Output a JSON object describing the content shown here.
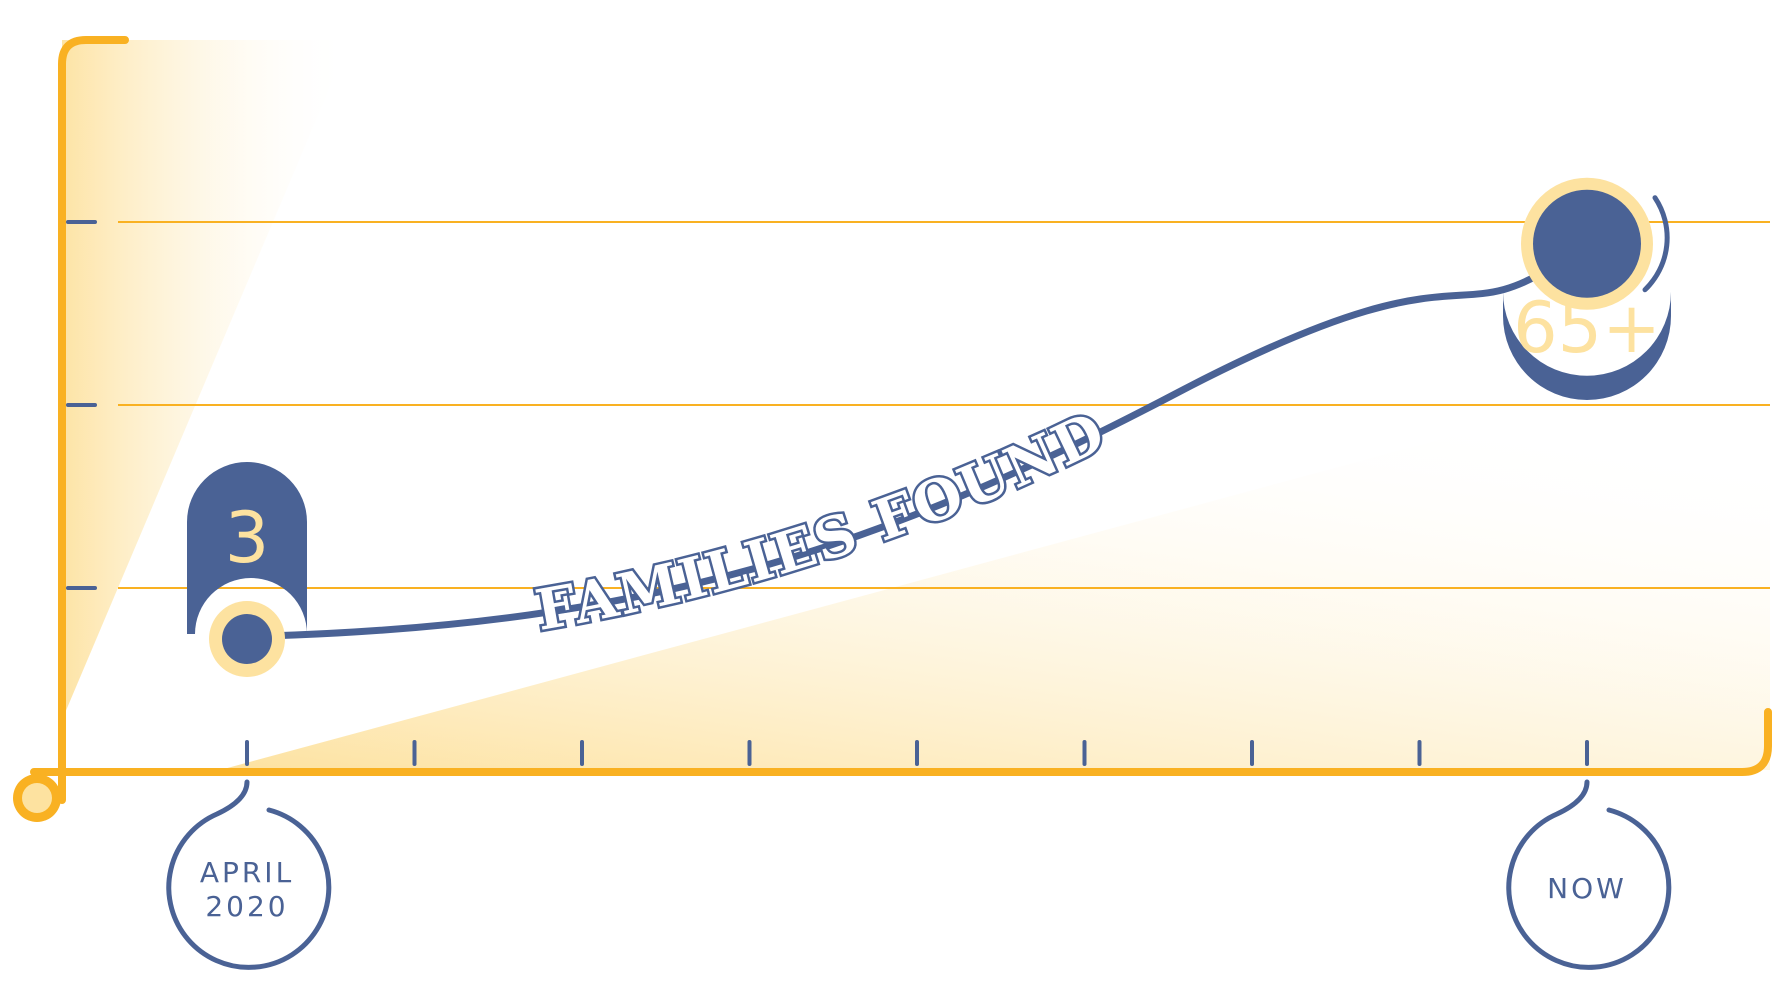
{
  "chart_data": {
    "type": "line",
    "title": "",
    "xlabel": "",
    "ylabel": "",
    "series": [
      {
        "name": "FAMILIES FOUND",
        "points": [
          {
            "x_label": "APRIL 2020",
            "value": 3,
            "value_label": "3"
          },
          {
            "x_label": "NOW",
            "value": 65,
            "value_label": "65+"
          }
        ]
      }
    ],
    "x_ticks": 9,
    "y_gridlines": 3,
    "grid": true,
    "legend": "none",
    "colors": {
      "axis": "#F9B122",
      "series": "#4A6295",
      "highlight": "#FDE2A0",
      "label_text": "#FDE2A0",
      "background": "#ffffff"
    }
  }
}
